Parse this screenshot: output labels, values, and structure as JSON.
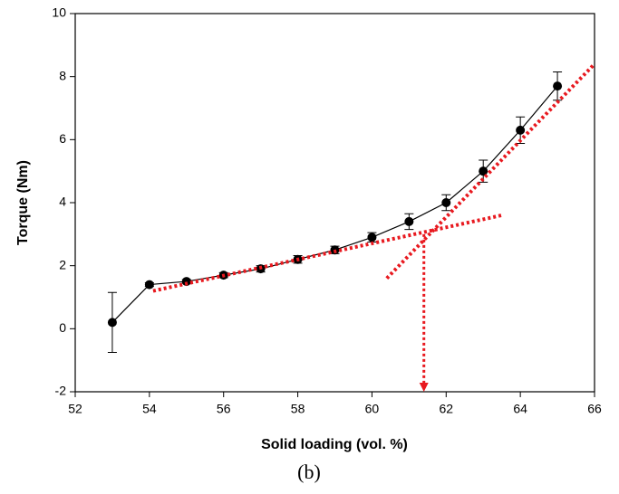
{
  "chart_data": {
    "type": "errorbar-line",
    "x_label": "Solid loading (vol. %)",
    "y_label": "Torque (Nm)",
    "caption": "(b)",
    "x": [
      53,
      54,
      55,
      56,
      57,
      58,
      59,
      60,
      61,
      62,
      63,
      64,
      65
    ],
    "series": [
      {
        "color": "#000000",
        "values": [
          0.2,
          1.4,
          1.5,
          1.7,
          1.9,
          2.2,
          2.5,
          2.9,
          3.4,
          4.0,
          5.0,
          6.3,
          7.7
        ],
        "errors": [
          0.95,
          0.06,
          0.06,
          0.08,
          0.1,
          0.12,
          0.12,
          0.15,
          0.25,
          0.25,
          0.35,
          0.42,
          0.45
        ]
      }
    ],
    "fit_lines": [
      {
        "color": "#e8191f",
        "x": [
          54.1,
          63.5
        ],
        "y": [
          1.2,
          3.6
        ]
      },
      {
        "color": "#e8191f",
        "x": [
          60.4,
          66.0
        ],
        "y": [
          1.6,
          8.4
        ]
      }
    ],
    "arrow": {
      "color": "#e8191f",
      "x": 61.4,
      "y": [
        3.0,
        -2
      ]
    },
    "xlim": [
      52,
      66
    ],
    "xticks": [
      52,
      54,
      56,
      58,
      60,
      62,
      64,
      66
    ],
    "ylim": [
      -2,
      10
    ],
    "yticks": [
      -2,
      0,
      2,
      4,
      6,
      8,
      10
    ]
  }
}
